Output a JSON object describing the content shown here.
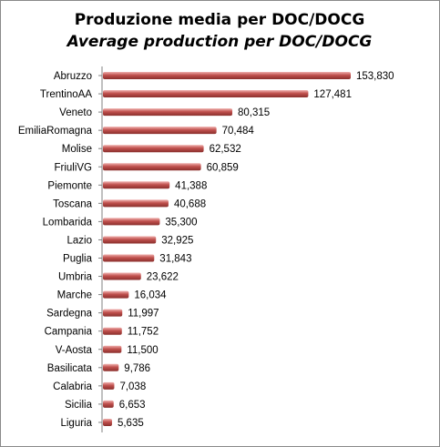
{
  "chart_data": {
    "type": "bar",
    "orientation": "horizontal",
    "title": "Produzione media per DOC/DOCG",
    "subtitle": "Average production per DOC/DOCG",
    "categories": [
      "Abruzzo",
      "TrentinoAA",
      "Veneto",
      "EmiliaRomagna",
      "Molise",
      "FriuliVG",
      "Piemonte",
      "Toscana",
      "Lombarida",
      "Lazio",
      "Puglia",
      "Umbria",
      "Marche",
      "Sardegna",
      "Campania",
      "V-Aosta",
      "Basilicata",
      "Calabria",
      "Sicilia",
      "Liguria"
    ],
    "values": [
      153830,
      127481,
      80315,
      70484,
      62532,
      60859,
      41388,
      40688,
      35300,
      32925,
      31843,
      23622,
      16034,
      11997,
      11752,
      11500,
      9786,
      7038,
      6653,
      5635
    ],
    "value_labels": [
      "153,830",
      "127,481",
      "80,315",
      "70,484",
      "62,532",
      "60,859",
      "41,388",
      "40,688",
      "35,300",
      "32,925",
      "31,843",
      "23,622",
      "16,034",
      "11,997",
      "11,752",
      "11,500",
      "9,786",
      "7,038",
      "6,653",
      "5,635"
    ],
    "xlim": [
      0,
      153830
    ],
    "grid": false,
    "legend": false,
    "bar_color": "#c0504d"
  }
}
